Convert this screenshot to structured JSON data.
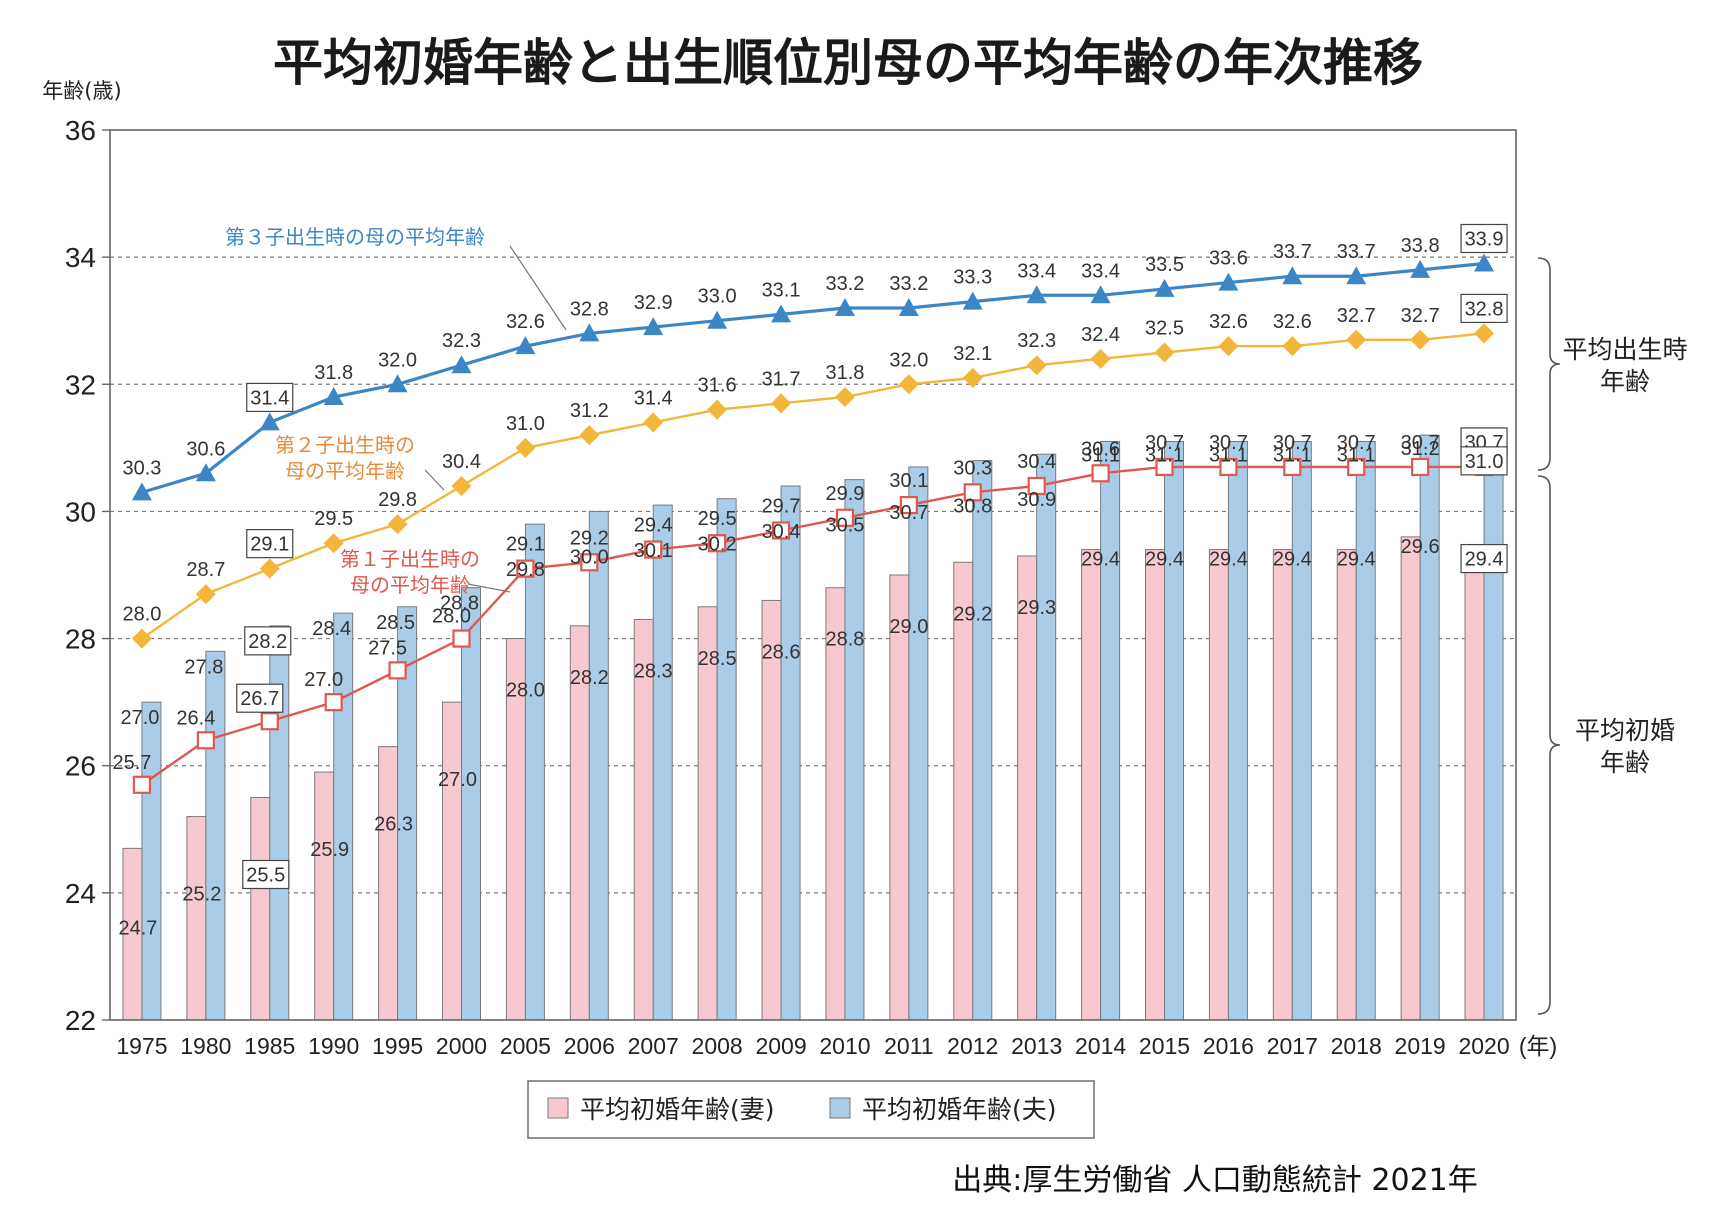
{
  "title": "平均初婚年齢と出生順位別母の平均年齢の年次推移",
  "source": "出典:厚生労働省 人口動態統計 2021年",
  "colors": {
    "third_child": "#3d86c6",
    "second_child": "#f2b63a",
    "first_child": "#e0574e",
    "wife_bar": "#f5c9cf",
    "husband_bar": "#a9cde8",
    "bar_stroke": "#7a7a7a",
    "grid": "#7a7a7a",
    "annotation_third": "#3d86c6",
    "annotation_second": "#e88a3a",
    "annotation_first": "#e0574e"
  },
  "chart_data": {
    "type": "bar",
    "title": "平均初婚年齢と出生順位別母の平均年齢の年次推移",
    "ylabel": "年齢(歳)",
    "xlabel_unit": "(年)",
    "ylim": [
      22,
      36
    ],
    "yticks": [
      22,
      24,
      26,
      28,
      30,
      32,
      34,
      36
    ],
    "grid": "horizontal dashed",
    "legend_position": "bottom-center",
    "categories": [
      "1975",
      "1980",
      "1985",
      "1990",
      "1995",
      "2000",
      "2005",
      "2006",
      "2007",
      "2008",
      "2009",
      "2010",
      "2011",
      "2012",
      "2013",
      "2014",
      "2015",
      "2016",
      "2017",
      "2018",
      "2019",
      "2020"
    ],
    "bar_series": [
      {
        "name": "平均初婚年齢(妻)",
        "values": [
          24.7,
          25.2,
          25.5,
          25.9,
          26.3,
          27.0,
          28.0,
          28.2,
          28.3,
          28.5,
          28.6,
          28.8,
          29.0,
          29.2,
          29.3,
          29.4,
          29.4,
          29.4,
          29.4,
          29.4,
          29.6,
          29.4
        ]
      },
      {
        "name": "平均初婚年齢(夫)",
        "values": [
          27.0,
          27.8,
          28.2,
          28.4,
          28.5,
          28.8,
          29.8,
          30.0,
          30.1,
          30.2,
          30.4,
          30.5,
          30.7,
          30.8,
          30.9,
          31.1,
          31.1,
          31.1,
          31.1,
          31.1,
          31.2,
          31.0
        ]
      }
    ],
    "line_series": [
      {
        "name": "第３子出生時の母の平均年齢",
        "marker": "triangle",
        "values": [
          30.3,
          30.6,
          31.4,
          31.8,
          32.0,
          32.3,
          32.6,
          32.8,
          32.9,
          33.0,
          33.1,
          33.2,
          33.2,
          33.3,
          33.4,
          33.4,
          33.5,
          33.6,
          33.7,
          33.7,
          33.8,
          33.9
        ]
      },
      {
        "name": "第２子出生時の母の平均年齢",
        "marker": "diamond",
        "values": [
          28.0,
          28.7,
          29.1,
          29.5,
          29.8,
          30.4,
          31.0,
          31.2,
          31.4,
          31.6,
          31.7,
          31.8,
          32.0,
          32.1,
          32.3,
          32.4,
          32.5,
          32.6,
          32.6,
          32.7,
          32.7,
          32.8
        ]
      },
      {
        "name": "第１子出生時の母の平均年齢",
        "marker": "square",
        "values": [
          25.7,
          26.4,
          26.7,
          27.0,
          27.5,
          28.0,
          29.1,
          29.2,
          29.4,
          29.5,
          29.7,
          29.9,
          30.1,
          30.3,
          30.4,
          30.6,
          30.7,
          30.7,
          30.7,
          30.7,
          30.7,
          30.7
        ]
      }
    ],
    "annotations": [
      {
        "text_lines": [
          "第３子出生時の母の平均年齢"
        ]
      },
      {
        "text_lines": [
          "第２子出生時の",
          "母の平均年齢"
        ]
      },
      {
        "text_lines": [
          "第１子出生時の",
          "母の平均年齢"
        ]
      }
    ],
    "brackets": [
      {
        "text_lines": [
          "平均出生時",
          "年齢"
        ]
      },
      {
        "text_lines": [
          "平均初婚",
          "年齢"
        ]
      }
    ]
  }
}
